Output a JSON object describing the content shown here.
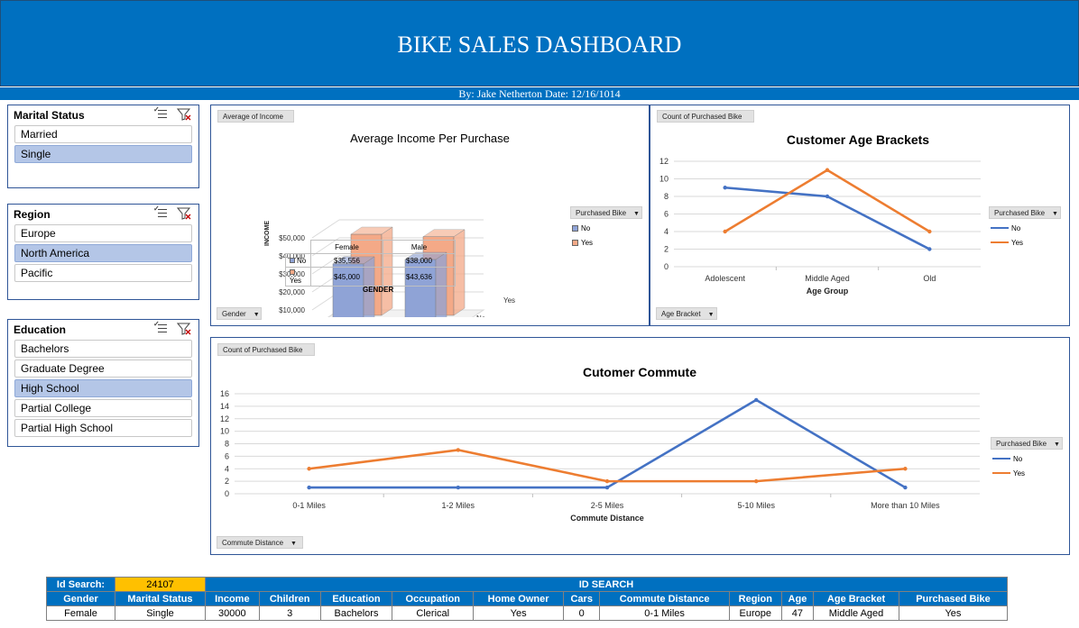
{
  "header": {
    "title": "BIKE SALES DASHBOARD",
    "subtitle": "By: Jake Netherton Date: 12/16/1014"
  },
  "slicers": {
    "marital": {
      "title": "Marital Status",
      "items": [
        {
          "label": "Married",
          "selected": false
        },
        {
          "label": "Single",
          "selected": true
        }
      ]
    },
    "region": {
      "title": "Region",
      "items": [
        {
          "label": "Europe",
          "selected": false
        },
        {
          "label": "North America",
          "selected": true
        },
        {
          "label": "Pacific",
          "selected": false
        }
      ]
    },
    "education": {
      "title": "Education",
      "items": [
        {
          "label": "Bachelors",
          "selected": false
        },
        {
          "label": "Graduate Degree",
          "selected": false
        },
        {
          "label": "High School",
          "selected": true
        },
        {
          "label": "Partial College",
          "selected": false
        },
        {
          "label": "Partial High School",
          "selected": false
        }
      ]
    }
  },
  "chart_data": [
    {
      "type": "bar",
      "title": "Average Income Per Purchase",
      "field_value": "Average of Income",
      "field_axis": "Gender",
      "legend_field": "Purchased Bike",
      "xlabel": "GENDER",
      "ylabel": "INCOME",
      "categories": [
        "Female",
        "Male"
      ],
      "ylim": [
        0,
        50000
      ],
      "yticks": [
        "$0",
        "$10,000",
        "$20,000",
        "$30,000",
        "$40,000",
        "$50,000"
      ],
      "series_labels": [
        "Yes",
        "No"
      ],
      "series": [
        {
          "name": "No",
          "values": [
            35556,
            38000
          ],
          "display": [
            "$35,556",
            "$38,000"
          ],
          "color": "#8fa3d6"
        },
        {
          "name": "Yes",
          "values": [
            45000,
            43636
          ],
          "display": [
            "$45,000",
            "$43,636"
          ],
          "color": "#f4a987"
        }
      ]
    },
    {
      "type": "line",
      "title": "Customer Age Brackets",
      "field_value": "Count of Purchased Bike",
      "field_axis": "Age Bracket",
      "legend_field": "Purchased Bike",
      "xlabel": "Age Group",
      "categories": [
        "Adolescent",
        "Middle Aged",
        "Old"
      ],
      "ylim": [
        0,
        12
      ],
      "yticks": [
        0,
        2,
        4,
        6,
        8,
        10,
        12
      ],
      "series": [
        {
          "name": "No",
          "values": [
            9,
            8,
            2
          ],
          "color": "#4472c4"
        },
        {
          "name": "Yes",
          "values": [
            4,
            11,
            4
          ],
          "color": "#ed7d31"
        }
      ]
    },
    {
      "type": "line",
      "title": "Cutomer Commute",
      "field_value": "Count of Purchased Bike",
      "field_axis": "Commute Distance",
      "legend_field": "Purchased Bike",
      "xlabel": "Commute Distance",
      "categories": [
        "0-1 Miles",
        "1-2 Miles",
        "2-5 Miles",
        "5-10 Miles",
        "More than 10 Miles"
      ],
      "ylim": [
        0,
        16
      ],
      "yticks": [
        0,
        2,
        4,
        6,
        8,
        10,
        12,
        14,
        16
      ],
      "series": [
        {
          "name": "No",
          "values": [
            1,
            1,
            1,
            15,
            1
          ],
          "color": "#4472c4"
        },
        {
          "name": "Yes",
          "values": [
            4,
            7,
            2,
            2,
            4
          ],
          "color": "#ed7d31"
        }
      ]
    }
  ],
  "id_search": {
    "label": "Id Search:",
    "value": "24107",
    "title": "ID SEARCH",
    "headers": [
      "Gender",
      "Marital Status",
      "Income",
      "Children",
      "Education",
      "Occupation",
      "Home Owner",
      "Cars",
      "Commute Distance",
      "Region",
      "Age",
      "Age Bracket",
      "Purchased Bike"
    ],
    "row": [
      "Female",
      "Single",
      "30000",
      "3",
      "Bachelors",
      "Clerical",
      "Yes",
      "0",
      "0-1 Miles",
      "Europe",
      "47",
      "Middle Aged",
      "Yes"
    ]
  }
}
